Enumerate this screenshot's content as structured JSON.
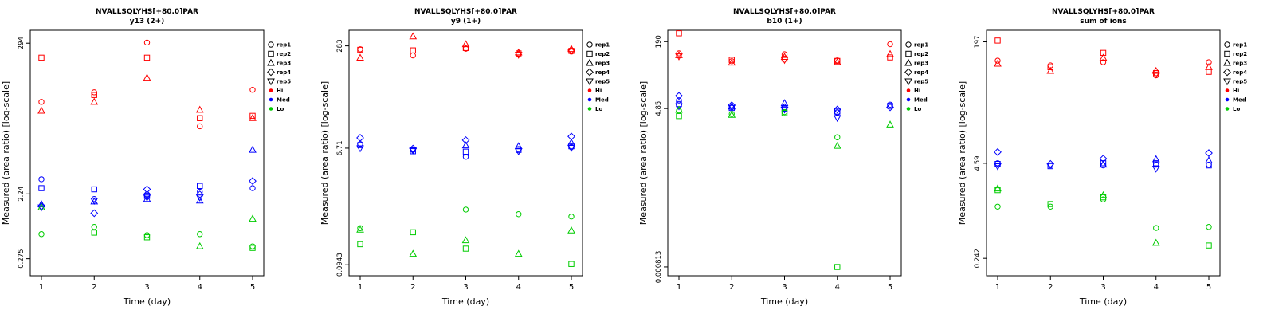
{
  "figure": {
    "xlabel": "Time (day)",
    "ylabel": "Measured (area ratio) [log-scale]"
  },
  "colors": {
    "Hi": "#FF0000",
    "Med": "#0000FF",
    "Lo": "#00CC00"
  },
  "legend": {
    "reps": [
      {
        "label": "rep1",
        "shape": "circle"
      },
      {
        "label": "rep2",
        "shape": "square"
      },
      {
        "label": "rep3",
        "shape": "triangle-up"
      },
      {
        "label": "rep4",
        "shape": "diamond"
      },
      {
        "label": "rep5",
        "shape": "triangle-down"
      }
    ],
    "levels": [
      {
        "label": "Hi",
        "color": "#FF0000"
      },
      {
        "label": "Med",
        "color": "#0000FF"
      },
      {
        "label": "Lo",
        "color": "#00CC00"
      }
    ]
  },
  "chart_data": [
    {
      "type": "scatter",
      "title": "NVALLSQLYHS[+80.0]PAR",
      "subtitle": "y13 (2+)",
      "xlabel": "Time (day)",
      "ylabel": "Measured (area ratio) [log-scale]",
      "x_ticks": [
        1,
        2,
        3,
        4,
        5
      ],
      "y_scale": "log",
      "y_ticks": [
        {
          "label": "0.275",
          "value": 0.275
        },
        {
          "label": "2.24",
          "value": 2.24
        },
        {
          "label": "294",
          "value": 294
        }
      ],
      "ylog_range": [
        -0.8,
        2.65
      ],
      "points_format": [
        "day",
        "level",
        "rep",
        "value"
      ],
      "points": [
        [
          1,
          "Hi",
          1,
          44
        ],
        [
          1,
          "Hi",
          2,
          184
        ],
        [
          1,
          "Hi",
          3,
          33
        ],
        [
          2,
          "Hi",
          1,
          60
        ],
        [
          2,
          "Hi",
          2,
          55
        ],
        [
          2,
          "Hi",
          3,
          44
        ],
        [
          3,
          "Hi",
          1,
          300
        ],
        [
          3,
          "Hi",
          2,
          184
        ],
        [
          3,
          "Hi",
          3,
          96
        ],
        [
          4,
          "Hi",
          1,
          20
        ],
        [
          4,
          "Hi",
          2,
          26
        ],
        [
          4,
          "Hi",
          3,
          34
        ],
        [
          5,
          "Hi",
          1,
          65
        ],
        [
          5,
          "Hi",
          2,
          28
        ],
        [
          5,
          "Hi",
          3,
          26
        ],
        [
          1,
          "Med",
          1,
          3.6
        ],
        [
          1,
          "Med",
          2,
          2.7
        ],
        [
          1,
          "Med",
          3,
          1.6
        ],
        [
          1,
          "Med",
          4,
          1.5
        ],
        [
          1,
          "Med",
          5,
          1.45
        ],
        [
          2,
          "Med",
          1,
          1.9
        ],
        [
          2,
          "Med",
          2,
          2.6
        ],
        [
          2,
          "Med",
          3,
          1.75
        ],
        [
          2,
          "Med",
          4,
          1.2
        ],
        [
          2,
          "Med",
          5,
          1.8
        ],
        [
          3,
          "Med",
          1,
          2.2
        ],
        [
          3,
          "Med",
          2,
          2.1
        ],
        [
          3,
          "Med",
          3,
          1.9
        ],
        [
          3,
          "Med",
          4,
          2.6
        ],
        [
          3,
          "Med",
          5,
          2.0
        ],
        [
          4,
          "Med",
          1,
          2.4
        ],
        [
          4,
          "Med",
          2,
          2.9
        ],
        [
          4,
          "Med",
          3,
          1.8
        ],
        [
          4,
          "Med",
          4,
          2.2
        ],
        [
          4,
          "Med",
          5,
          2.0
        ],
        [
          5,
          "Med",
          1,
          2.7
        ],
        [
          5,
          "Med",
          3,
          9.3
        ],
        [
          5,
          "Med",
          4,
          3.4
        ],
        [
          1,
          "Lo",
          1,
          0.61
        ],
        [
          1,
          "Lo",
          3,
          1.45
        ],
        [
          2,
          "Lo",
          1,
          0.77
        ],
        [
          2,
          "Lo",
          2,
          0.64
        ],
        [
          3,
          "Lo",
          1,
          0.59
        ],
        [
          3,
          "Lo",
          2,
          0.55
        ],
        [
          4,
          "Lo",
          1,
          0.61
        ],
        [
          4,
          "Lo",
          3,
          0.41
        ],
        [
          5,
          "Lo",
          3,
          1.0
        ],
        [
          5,
          "Lo",
          1,
          0.41
        ],
        [
          5,
          "Lo",
          2,
          0.39
        ]
      ]
    },
    {
      "type": "scatter",
      "title": "NVALLSQLYHS[+80.0]PAR",
      "subtitle": "y9 (1+)",
      "xlabel": "Time (day)",
      "ylabel": "Measured (area ratio) [log-scale]",
      "x_ticks": [
        1,
        2,
        3,
        4,
        5
      ],
      "y_scale": "log",
      "y_ticks": [
        {
          "label": "0.0943",
          "value": 0.0943
        },
        {
          "label": "6.71",
          "value": 6.71
        },
        {
          "label": "283",
          "value": 283
        }
      ],
      "ylog_range": [
        -1.2,
        2.7
      ],
      "points_format": [
        "day",
        "level",
        "rep",
        "value"
      ],
      "points": [
        [
          1,
          "Hi",
          1,
          250
        ],
        [
          1,
          "Hi",
          2,
          245
        ],
        [
          1,
          "Hi",
          3,
          183
        ],
        [
          2,
          "Hi",
          1,
          200
        ],
        [
          2,
          "Hi",
          2,
          240
        ],
        [
          2,
          "Hi",
          3,
          400
        ],
        [
          3,
          "Hi",
          1,
          255
        ],
        [
          3,
          "Hi",
          2,
          262
        ],
        [
          3,
          "Hi",
          3,
          300
        ],
        [
          4,
          "Hi",
          1,
          210
        ],
        [
          4,
          "Hi",
          2,
          215
        ],
        [
          4,
          "Hi",
          3,
          222
        ],
        [
          4,
          "Hi",
          5,
          205
        ],
        [
          5,
          "Hi",
          1,
          230
        ],
        [
          5,
          "Hi",
          2,
          236
        ],
        [
          5,
          "Hi",
          3,
          252
        ],
        [
          5,
          "Hi",
          4,
          242
        ],
        [
          1,
          "Med",
          1,
          7.8
        ],
        [
          1,
          "Med",
          2,
          7.5
        ],
        [
          1,
          "Med",
          4,
          9.8
        ],
        [
          1,
          "Med",
          5,
          6.7
        ],
        [
          2,
          "Med",
          1,
          6.3
        ],
        [
          2,
          "Med",
          2,
          6.0
        ],
        [
          2,
          "Med",
          4,
          6.6
        ],
        [
          2,
          "Med",
          5,
          6.2
        ],
        [
          3,
          "Med",
          1,
          4.9
        ],
        [
          3,
          "Med",
          2,
          5.9
        ],
        [
          3,
          "Med",
          3,
          7.4
        ],
        [
          3,
          "Med",
          4,
          9.0
        ],
        [
          4,
          "Med",
          1,
          6.5
        ],
        [
          4,
          "Med",
          2,
          6.3
        ],
        [
          4,
          "Med",
          3,
          7.2
        ],
        [
          4,
          "Med",
          5,
          6.0
        ],
        [
          5,
          "Med",
          1,
          7.0
        ],
        [
          5,
          "Med",
          2,
          7.2
        ],
        [
          5,
          "Med",
          3,
          8.2
        ],
        [
          5,
          "Med",
          4,
          10.3
        ],
        [
          5,
          "Med",
          5,
          6.8
        ],
        [
          1,
          "Lo",
          1,
          0.36
        ],
        [
          1,
          "Lo",
          2,
          0.2
        ],
        [
          1,
          "Lo",
          3,
          0.34
        ],
        [
          2,
          "Lo",
          2,
          0.31
        ],
        [
          2,
          "Lo",
          3,
          0.14
        ],
        [
          3,
          "Lo",
          1,
          0.71
        ],
        [
          3,
          "Lo",
          2,
          0.17
        ],
        [
          3,
          "Lo",
          3,
          0.23
        ],
        [
          4,
          "Lo",
          1,
          0.6
        ],
        [
          4,
          "Lo",
          3,
          0.14
        ],
        [
          5,
          "Lo",
          1,
          0.55
        ],
        [
          5,
          "Lo",
          3,
          0.33
        ],
        [
          5,
          "Lo",
          2,
          0.097
        ]
      ]
    },
    {
      "type": "scatter",
      "title": "NVALLSQLYHS[+80.0]PAR",
      "subtitle": "b10 (1+)",
      "xlabel": "Time (day)",
      "ylabel": "Measured (area ratio) [log-scale]",
      "x_ticks": [
        1,
        2,
        3,
        4,
        5
      ],
      "y_scale": "log",
      "y_ticks": [
        {
          "label": "0.000813",
          "value": 0.000813
        },
        {
          "label": "4.85",
          "value": 4.85
        },
        {
          "label": "190",
          "value": 190
        }
      ],
      "ylog_range": [
        -3.3,
        2.55
      ],
      "points_format": [
        "day",
        "level",
        "rep",
        "value"
      ],
      "points": [
        [
          1,
          "Hi",
          1,
          100
        ],
        [
          1,
          "Hi",
          2,
          300
        ],
        [
          1,
          "Hi",
          3,
          90
        ],
        [
          1,
          "Hi",
          5,
          85
        ],
        [
          2,
          "Hi",
          1,
          65
        ],
        [
          2,
          "Hi",
          2,
          70
        ],
        [
          2,
          "Hi",
          3,
          60
        ],
        [
          3,
          "Hi",
          1,
          95
        ],
        [
          3,
          "Hi",
          2,
          75
        ],
        [
          3,
          "Hi",
          3,
          82
        ],
        [
          3,
          "Hi",
          5,
          70
        ],
        [
          4,
          "Hi",
          1,
          68
        ],
        [
          4,
          "Hi",
          2,
          66
        ],
        [
          4,
          "Hi",
          3,
          62
        ],
        [
          5,
          "Hi",
          1,
          165
        ],
        [
          5,
          "Hi",
          2,
          80
        ],
        [
          5,
          "Hi",
          3,
          96
        ],
        [
          1,
          "Med",
          1,
          7.6
        ],
        [
          1,
          "Med",
          2,
          6.2
        ],
        [
          1,
          "Med",
          4,
          9.7
        ],
        [
          1,
          "Med",
          5,
          5.5
        ],
        [
          2,
          "Med",
          1,
          5.2
        ],
        [
          2,
          "Med",
          2,
          5.0
        ],
        [
          2,
          "Med",
          3,
          5.4
        ],
        [
          2,
          "Med",
          4,
          5.8
        ],
        [
          3,
          "Med",
          1,
          5.0
        ],
        [
          3,
          "Med",
          2,
          4.8
        ],
        [
          3,
          "Med",
          3,
          6.5
        ],
        [
          3,
          "Med",
          4,
          5.2
        ],
        [
          3,
          "Med",
          5,
          4.6
        ],
        [
          4,
          "Med",
          1,
          3.9
        ],
        [
          4,
          "Med",
          2,
          4.1
        ],
        [
          4,
          "Med",
          4,
          4.6
        ],
        [
          4,
          "Med",
          5,
          2.9
        ],
        [
          5,
          "Med",
          1,
          6.0
        ],
        [
          5,
          "Med",
          2,
          5.6
        ],
        [
          5,
          "Med",
          4,
          5.2
        ],
        [
          1,
          "Lo",
          1,
          4.3
        ],
        [
          1,
          "Lo",
          2,
          3.2
        ],
        [
          1,
          "Lo",
          3,
          4.5
        ],
        [
          2,
          "Lo",
          1,
          3.6
        ],
        [
          2,
          "Lo",
          3,
          3.4
        ],
        [
          3,
          "Lo",
          1,
          4.0
        ],
        [
          3,
          "Lo",
          2,
          3.8
        ],
        [
          4,
          "Lo",
          1,
          1.0
        ],
        [
          4,
          "Lo",
          3,
          0.62
        ],
        [
          4,
          "Lo",
          2,
          0.00081
        ],
        [
          5,
          "Lo",
          3,
          2.0
        ]
      ]
    },
    {
      "type": "scatter",
      "title": "NVALLSQLYHS[+80.0]PAR",
      "subtitle": "sum of ions",
      "xlabel": "Time (day)",
      "ylabel": "Measured (area ratio) [log-scale]",
      "x_ticks": [
        1,
        2,
        3,
        4,
        5
      ],
      "y_scale": "log",
      "y_ticks": [
        {
          "label": "0.242",
          "value": 0.242
        },
        {
          "label": "4.59",
          "value": 4.59
        },
        {
          "label": "197",
          "value": 197
        }
      ],
      "ylog_range": [
        -0.85,
        2.45
      ],
      "points_format": [
        "day",
        "level",
        "rep",
        "value"
      ],
      "points": [
        [
          1,
          "Hi",
          1,
          110
        ],
        [
          1,
          "Hi",
          2,
          205
        ],
        [
          1,
          "Hi",
          3,
          100
        ],
        [
          2,
          "Hi",
          1,
          95
        ],
        [
          2,
          "Hi",
          2,
          90
        ],
        [
          2,
          "Hi",
          3,
          80
        ],
        [
          3,
          "Hi",
          1,
          105
        ],
        [
          3,
          "Hi",
          2,
          140
        ],
        [
          3,
          "Hi",
          3,
          120
        ],
        [
          4,
          "Hi",
          1,
          70
        ],
        [
          4,
          "Hi",
          2,
          75
        ],
        [
          4,
          "Hi",
          3,
          80
        ],
        [
          4,
          "Hi",
          5,
          72
        ],
        [
          5,
          "Hi",
          1,
          105
        ],
        [
          5,
          "Hi",
          2,
          78
        ],
        [
          5,
          "Hi",
          3,
          90
        ],
        [
          1,
          "Med",
          1,
          4.6
        ],
        [
          1,
          "Med",
          2,
          4.5
        ],
        [
          1,
          "Med",
          4,
          6.5
        ],
        [
          1,
          "Med",
          5,
          4.2
        ],
        [
          2,
          "Med",
          1,
          4.3
        ],
        [
          2,
          "Med",
          2,
          4.2
        ],
        [
          2,
          "Med",
          4,
          4.5
        ],
        [
          3,
          "Med",
          1,
          4.3
        ],
        [
          3,
          "Med",
          2,
          4.6
        ],
        [
          3,
          "Med",
          3,
          4.4
        ],
        [
          3,
          "Med",
          4,
          5.3
        ],
        [
          4,
          "Med",
          1,
          4.4
        ],
        [
          4,
          "Med",
          2,
          4.6
        ],
        [
          4,
          "Med",
          3,
          5.2
        ],
        [
          4,
          "Med",
          5,
          3.9
        ],
        [
          5,
          "Med",
          1,
          4.4
        ],
        [
          5,
          "Med",
          2,
          4.3
        ],
        [
          5,
          "Med",
          3,
          5.0
        ],
        [
          5,
          "Med",
          4,
          6.3
        ],
        [
          1,
          "Lo",
          1,
          1.2
        ],
        [
          1,
          "Lo",
          2,
          2.0
        ],
        [
          1,
          "Lo",
          3,
          2.1
        ],
        [
          2,
          "Lo",
          1,
          1.2
        ],
        [
          2,
          "Lo",
          2,
          1.3
        ],
        [
          3,
          "Lo",
          1,
          1.5
        ],
        [
          3,
          "Lo",
          2,
          1.6
        ],
        [
          3,
          "Lo",
          3,
          1.7
        ],
        [
          4,
          "Lo",
          1,
          0.62
        ],
        [
          4,
          "Lo",
          3,
          0.39
        ],
        [
          5,
          "Lo",
          1,
          0.64
        ],
        [
          5,
          "Lo",
          2,
          0.36
        ]
      ]
    }
  ]
}
